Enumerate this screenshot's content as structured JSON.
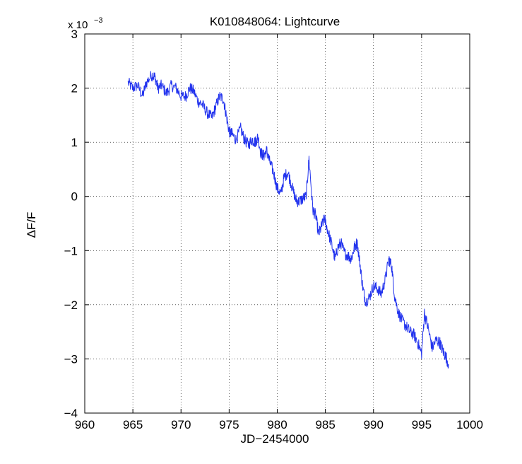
{
  "chart_data": {
    "type": "line",
    "title": "K010848064:  Lightcurve",
    "xlabel": "JD−2454000",
    "ylabel": "ΔF/F",
    "exponent_base": "x 10",
    "exponent_power": "−3",
    "xlim": [
      960,
      1000
    ],
    "ylim": [
      -4,
      3
    ],
    "x_ticks": [
      960,
      965,
      970,
      975,
      980,
      985,
      990,
      995,
      1000
    ],
    "x_tick_labels": [
      "960",
      "965",
      "970",
      "975",
      "980",
      "985",
      "990",
      "995",
      "1000"
    ],
    "y_ticks": [
      -4,
      -3,
      -2,
      -1,
      0,
      1,
      2,
      3
    ],
    "y_tick_labels": [
      "−4",
      "−3",
      "−2",
      "−1",
      "0",
      "1",
      "2",
      "3"
    ],
    "grid": true,
    "series": [
      {
        "name": "Lightcurve",
        "color": "#2233ee",
        "x": [
          964.5,
          965.0,
          965.5,
          966.0,
          966.4,
          967.0,
          967.3,
          967.6,
          968.0,
          968.5,
          969.0,
          969.5,
          970.0,
          970.5,
          970.9,
          971.3,
          971.8,
          972.2,
          972.7,
          973.2,
          973.6,
          974.0,
          974.4,
          974.7,
          975.0,
          975.3,
          975.7,
          976.2,
          976.6,
          977.0,
          977.4,
          977.7,
          978.0,
          978.3,
          978.6,
          978.9,
          979.2,
          979.6,
          980.0,
          980.4,
          980.7,
          981.1,
          981.5,
          981.9,
          982.2,
          982.6,
          983.0,
          983.3,
          983.7,
          984.0,
          984.3,
          984.6,
          984.9,
          985.2,
          985.6,
          986.0,
          986.3,
          986.6,
          987.0,
          987.4,
          987.7,
          988.0,
          988.3,
          988.6,
          988.9,
          989.2,
          989.6,
          990.0,
          990.4,
          990.8,
          991.2,
          991.6,
          991.9,
          992.2,
          992.6,
          993.0,
          993.4,
          993.8,
          994.2,
          994.6,
          995.0,
          995.3,
          995.7,
          996.1,
          996.5,
          996.9,
          997.2,
          997.5,
          997.8
        ],
        "y": [
          2.1,
          2.0,
          2.05,
          1.85,
          2.1,
          2.25,
          2.2,
          2.0,
          2.05,
          1.9,
          2.05,
          2.0,
          1.85,
          1.85,
          2.0,
          1.95,
          1.75,
          1.7,
          1.55,
          1.45,
          1.65,
          1.85,
          1.8,
          1.5,
          1.2,
          1.15,
          1.05,
          1.25,
          1.05,
          0.95,
          1.05,
          1.0,
          1.1,
          0.8,
          0.75,
          0.85,
          0.65,
          0.45,
          0.15,
          0.05,
          0.35,
          0.45,
          0.2,
          -0.05,
          -0.1,
          -0.05,
          0.0,
          0.7,
          -0.25,
          -0.35,
          -0.7,
          -0.55,
          -0.4,
          -0.6,
          -0.85,
          -1.15,
          -0.95,
          -0.85,
          -1.05,
          -1.1,
          -1.15,
          -0.95,
          -0.85,
          -1.25,
          -1.7,
          -1.95,
          -1.85,
          -1.65,
          -1.7,
          -1.8,
          -1.55,
          -1.15,
          -1.3,
          -1.85,
          -2.15,
          -2.3,
          -2.4,
          -2.5,
          -2.55,
          -2.7,
          -2.9,
          -2.15,
          -2.45,
          -2.8,
          -2.65,
          -2.7,
          -2.85,
          -2.95,
          -3.1
        ]
      }
    ]
  }
}
